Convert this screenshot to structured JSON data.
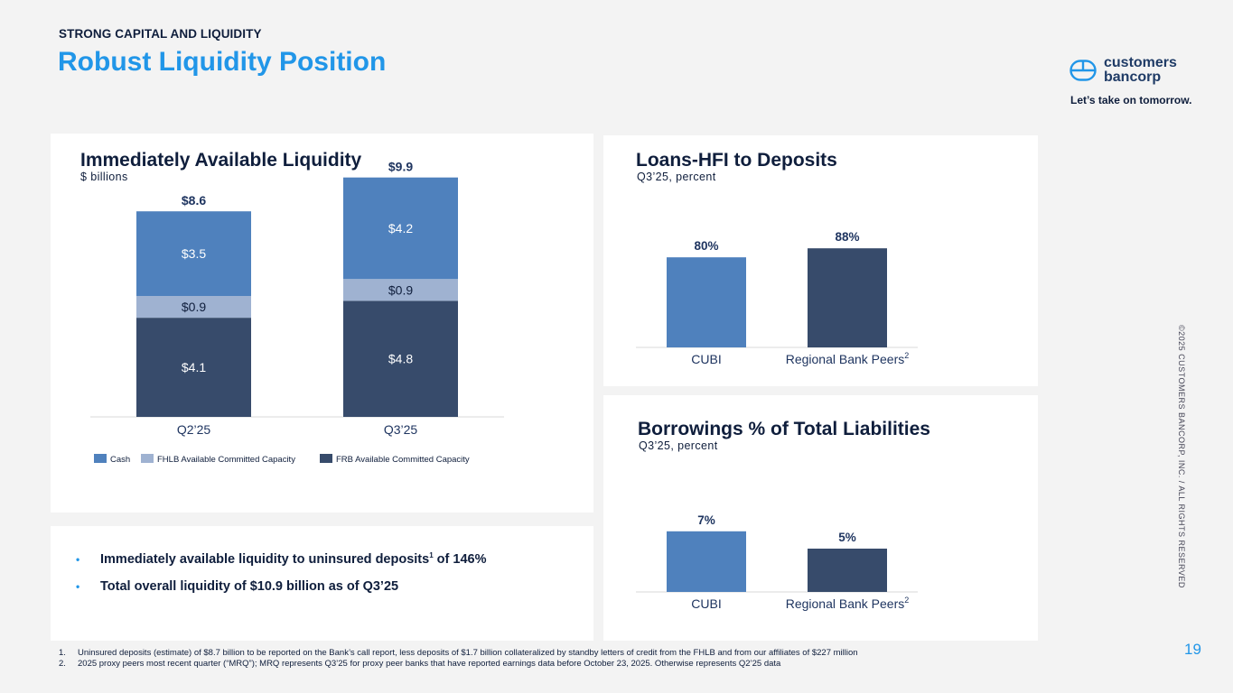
{
  "header": {
    "eyebrow": "STRONG CAPITAL AND LIQUIDITY",
    "title": "Robust Liquidity Position"
  },
  "brand": {
    "name_line1": "customers",
    "name_line2": "bancorp",
    "tagline": "Let’s take on tomorrow.",
    "logo_icon": "customers-bancorp-logo-icon"
  },
  "colors": {
    "accent": "#2196e8",
    "cash": "#4f81bd",
    "fhlb": "#9fb2d1",
    "frb": "#374b6b",
    "cubi": "#4f81bd",
    "peers": "#374b6b"
  },
  "chart_data": [
    {
      "type": "bar",
      "stacked": true,
      "title": "Immediately Available Liquidity",
      "subtitle": "$ billions",
      "categories": [
        "Q2’25",
        "Q3’25"
      ],
      "series": [
        {
          "name": "FRB Available Committed Capacity",
          "values": [
            4.1,
            4.8
          ],
          "labels": [
            "$4.1",
            "$4.8"
          ]
        },
        {
          "name": "FHLB Available Committed Capacity",
          "values": [
            0.9,
            0.9
          ],
          "labels": [
            "$0.9",
            "$0.9"
          ]
        },
        {
          "name": "Cash",
          "values": [
            3.5,
            4.2
          ],
          "labels": [
            "$3.5",
            "$4.2"
          ]
        }
      ],
      "totals": [
        "$8.6",
        "$9.9"
      ],
      "legend": [
        "Cash",
        "FHLB Available Committed Capacity",
        "FRB Available Committed Capacity"
      ],
      "legend_position": "bottom",
      "ylim": [
        0,
        10
      ]
    },
    {
      "type": "bar",
      "title": "Loans-HFI to Deposits",
      "subtitle": "Q3’25, percent",
      "categories": [
        "CUBI",
        "Regional Bank Peers"
      ],
      "category_superscripts": [
        "",
        "2"
      ],
      "values": [
        80,
        88
      ],
      "labels": [
        "80%",
        "88%"
      ],
      "ylim": [
        0,
        100
      ]
    },
    {
      "type": "bar",
      "title": "Borrowings % of Total Liabilities",
      "subtitle": "Q3’25, percent",
      "categories": [
        "CUBI",
        "Regional Bank Peers"
      ],
      "category_superscripts": [
        "",
        "2"
      ],
      "values": [
        7,
        5
      ],
      "labels": [
        "7%",
        "5%"
      ],
      "ylim": [
        0,
        10
      ]
    }
  ],
  "bullets": [
    {
      "text": "Immediately available liquidity to uninsured deposits",
      "sup": "1",
      "after": " of 146%"
    },
    {
      "text": "Total overall liquidity of $10.9 billion as of Q3’25",
      "sup": "",
      "after": ""
    }
  ],
  "footnotes": [
    {
      "num": "1.",
      "text": "Uninsured deposits (estimate) of $8.7 billion to be reported on the Bank’s call report, less deposits of $1.7 billion collateralized by standby letters of credit from the FHLB and from our affiliates of $227 million"
    },
    {
      "num": "2.",
      "text": "2025 proxy peers most recent quarter (“MRQ”); MRQ represents Q3’25 for proxy peer banks that have reported earnings data before October 23, 2025. Otherwise represents Q2’25 data"
    }
  ],
  "copyright": "©2025 CUSTOMERS BANCORP, INC. / ALL RIGHTS RESERVED",
  "page_number": "19"
}
